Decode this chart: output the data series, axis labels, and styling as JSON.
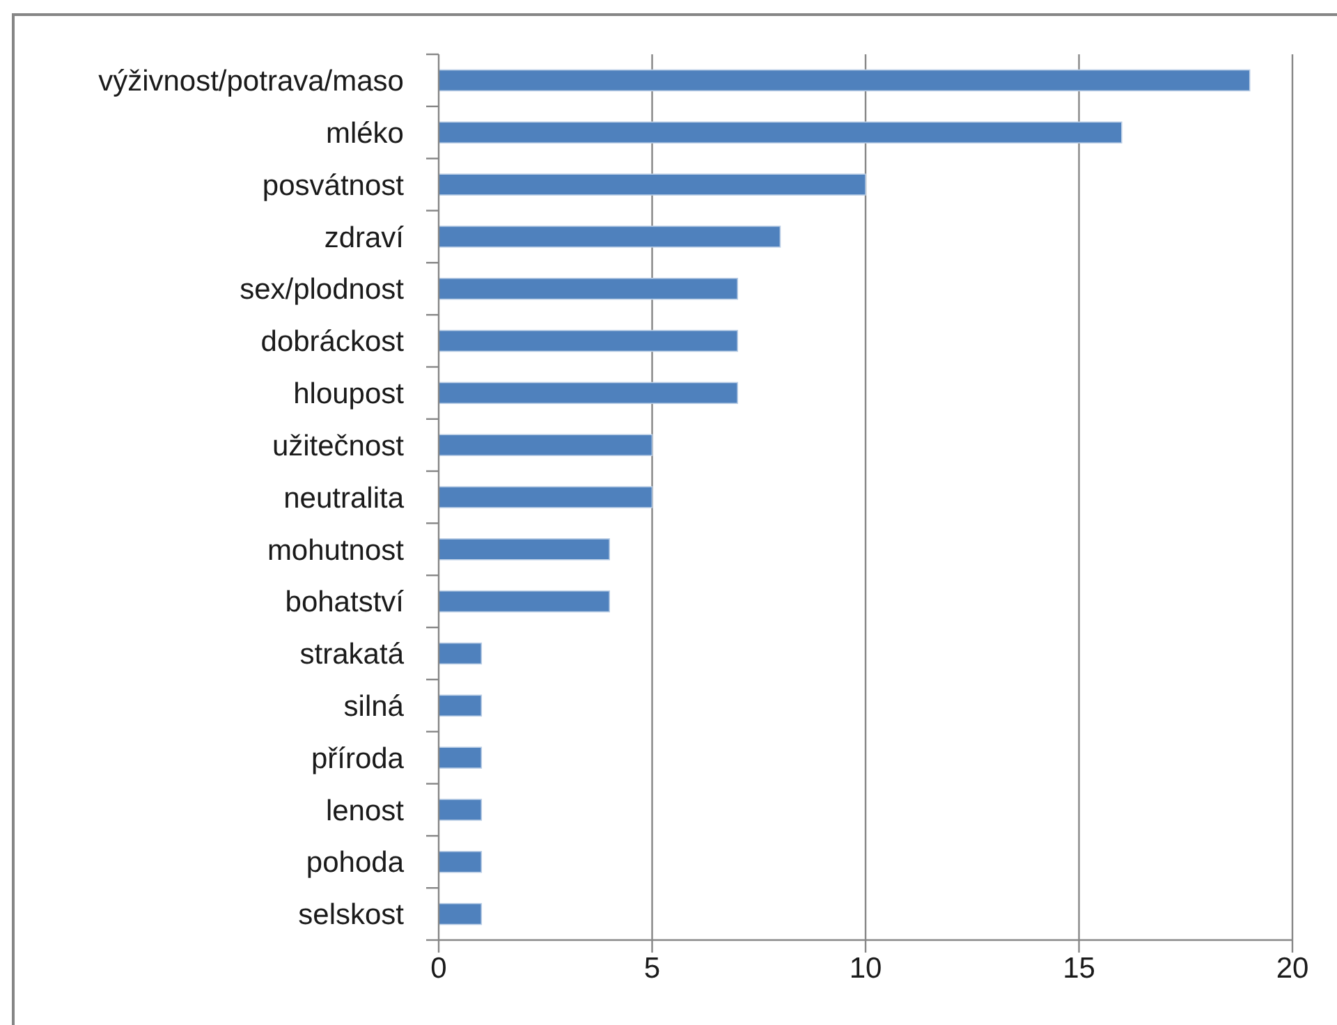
{
  "chart_data": {
    "type": "bar",
    "orientation": "horizontal",
    "categories": [
      "výživnost/potrava/maso",
      "mléko",
      "posvátnost",
      "zdraví",
      "sex/plodnost",
      "dobráckost",
      "hloupost",
      "užitečnost",
      "neutralita",
      "mohutnost",
      "bohatství",
      "strakatá",
      "silná",
      "příroda",
      "lenost",
      "pohoda",
      "selskost"
    ],
    "values": [
      19,
      16,
      10,
      8,
      7,
      7,
      7,
      5,
      5,
      4,
      4,
      1,
      1,
      1,
      1,
      1,
      1
    ],
    "color": "#4f81bd",
    "xlim": [
      0,
      20
    ],
    "xticks": [
      0,
      5,
      10,
      15,
      20
    ],
    "grid": "x"
  }
}
